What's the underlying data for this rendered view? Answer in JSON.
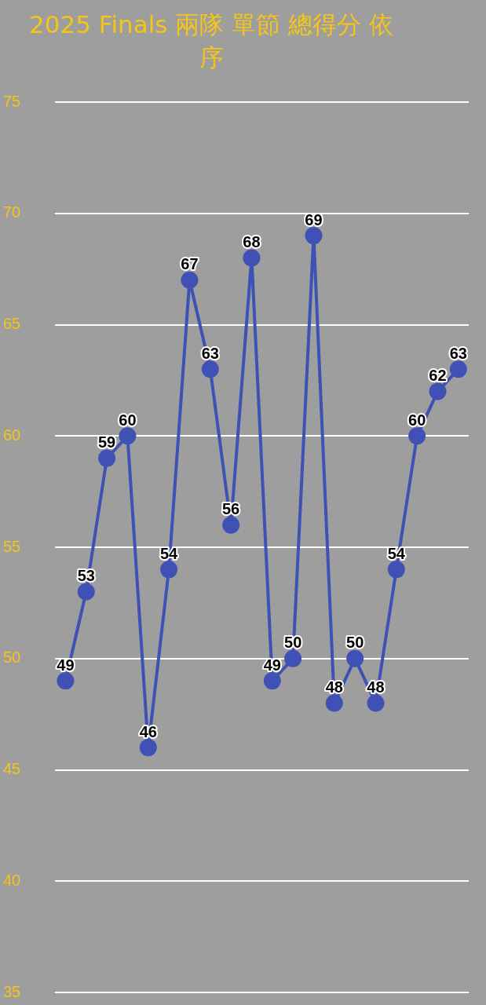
{
  "chart_data": {
    "type": "line",
    "title": "2025 Finals 兩隊 單節 總得分 依序",
    "categories": [
      null,
      null,
      null,
      null,
      null,
      null,
      null,
      null,
      null,
      null,
      null,
      null,
      null,
      null,
      null,
      null,
      null,
      null,
      null,
      null
    ],
    "series": [
      {
        "color": "#3f51b5",
        "values": [
          49,
          53,
          59,
          60,
          46,
          54,
          67,
          63,
          56,
          68,
          49,
          50,
          69,
          48,
          50,
          48,
          54,
          60,
          62,
          63
        ]
      }
    ],
    "ylim": [
      35,
      75
    ],
    "yticks": [
      35,
      40,
      45,
      50,
      55,
      60,
      65,
      70,
      75
    ],
    "grid": "y",
    "tick_labels": "y",
    "legend": false,
    "marker": "circle",
    "line_style": "solid",
    "data_labels": true
  }
}
